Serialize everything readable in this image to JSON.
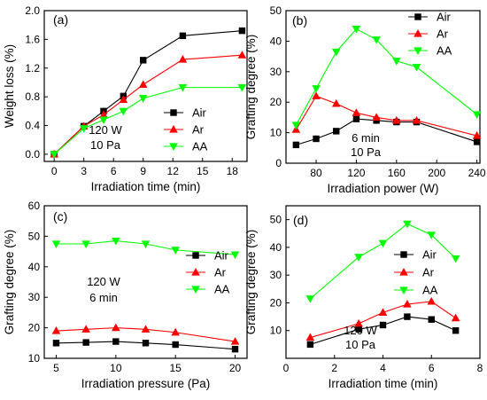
{
  "chart_data": [
    {
      "type": "line",
      "panel_label": "(a)",
      "xlabel": "Irradiation time (min)",
      "ylabel": "Weight loss (%)",
      "xlim": [
        -1,
        19.5
      ],
      "ylim": [
        -0.1,
        2.0
      ],
      "xticks": [
        0,
        3,
        6,
        9,
        12,
        15,
        18
      ],
      "yticks": [
        0.0,
        0.4,
        0.8,
        1.2,
        1.6,
        2.0
      ],
      "ytick_labels": [
        "0.0",
        "0.4",
        "0.8",
        "1.2",
        "1.6",
        "2.0"
      ],
      "legend_position": "bottom-right",
      "annotations": [
        "120 W",
        "10 Pa"
      ],
      "series": [
        {
          "name": "Air",
          "marker": "square",
          "color": "#000000",
          "x": [
            0,
            3,
            5,
            7,
            9,
            13,
            19
          ],
          "y": [
            0.0,
            0.39,
            0.6,
            0.81,
            1.31,
            1.65,
            1.72
          ]
        },
        {
          "name": "Ar",
          "marker": "triangle-up",
          "color": "#ff0000",
          "x": [
            0,
            3,
            5,
            7,
            9,
            13,
            19
          ],
          "y": [
            0.0,
            0.39,
            0.55,
            0.76,
            0.97,
            1.32,
            1.38
          ]
        },
        {
          "name": "AA",
          "marker": "triangle-down",
          "color": "#00ff00",
          "x": [
            0,
            3,
            5,
            7,
            9,
            13,
            19
          ],
          "y": [
            0.0,
            0.36,
            0.48,
            0.6,
            0.78,
            0.93,
            0.93
          ]
        }
      ]
    },
    {
      "type": "line",
      "panel_label": "(b)",
      "xlabel": "Irradiation power (W)",
      "ylabel": "Grafting degree (%)",
      "xlim": [
        50,
        243
      ],
      "ylim": [
        0,
        50
      ],
      "xticks": [
        80,
        120,
        160,
        200,
        240
      ],
      "yticks": [
        0,
        10,
        20,
        30,
        40,
        50
      ],
      "legend_position": "top-right",
      "annotations": [
        "6 min",
        "10 Pa"
      ],
      "series": [
        {
          "name": "Air",
          "marker": "square",
          "color": "#000000",
          "x": [
            60,
            80,
            100,
            120,
            140,
            160,
            180,
            240
          ],
          "y": [
            6,
            8,
            10.5,
            14.5,
            14,
            13.5,
            13.5,
            7
          ]
        },
        {
          "name": "Ar",
          "marker": "triangle-up",
          "color": "#ff0000",
          "x": [
            60,
            80,
            100,
            120,
            140,
            160,
            180,
            240
          ],
          "y": [
            11,
            22,
            19.5,
            16.5,
            15,
            14,
            14,
            9
          ]
        },
        {
          "name": "AA",
          "marker": "triangle-down",
          "color": "#00ff00",
          "x": [
            60,
            80,
            100,
            120,
            140,
            160,
            180,
            240
          ],
          "y": [
            12.5,
            24.5,
            36.5,
            44,
            40.5,
            33.5,
            31.5,
            16
          ]
        }
      ]
    },
    {
      "type": "line",
      "panel_label": "(c)",
      "xlabel": "Irradiation pressure (Pa)",
      "ylabel": "Grafting degree (%)",
      "xlim": [
        4,
        21
      ],
      "ylim": [
        10,
        60
      ],
      "xticks": [
        5,
        10,
        15,
        20
      ],
      "yticks": [
        10,
        20,
        30,
        40,
        50,
        60
      ],
      "legend_position": "right",
      "annotations": [
        "120 W",
        "6 min"
      ],
      "series": [
        {
          "name": "Air",
          "marker": "square",
          "color": "#000000",
          "x": [
            5,
            7.5,
            10,
            12.5,
            15,
            20
          ],
          "y": [
            15,
            15.2,
            15.5,
            15,
            14.5,
            13
          ]
        },
        {
          "name": "Ar",
          "marker": "triangle-up",
          "color": "#ff0000",
          "x": [
            5,
            7.5,
            10,
            12.5,
            15,
            20
          ],
          "y": [
            19,
            19.5,
            20,
            19.5,
            18.5,
            15.5
          ]
        },
        {
          "name": "AA",
          "marker": "triangle-down",
          "color": "#00ff00",
          "x": [
            5,
            7.5,
            10,
            12.5,
            15,
            20
          ],
          "y": [
            47.5,
            47.5,
            48.5,
            47.5,
            45.5,
            44
          ]
        }
      ]
    },
    {
      "type": "line",
      "panel_label": "(d)",
      "xlabel": "Irradiation time (min)",
      "ylabel": "Grafting degree (%)",
      "xlim": [
        0,
        8
      ],
      "ylim": [
        0,
        55
      ],
      "xticks": [
        0,
        2,
        4,
        6,
        8
      ],
      "yticks": [
        10,
        20,
        30,
        40,
        50
      ],
      "legend_position": "bottom-right",
      "annotations": [
        "120 W",
        "10 Pa"
      ],
      "series": [
        {
          "name": "Air",
          "marker": "square",
          "color": "#000000",
          "x": [
            1,
            3,
            4,
            5,
            6,
            7
          ],
          "y": [
            5,
            10.5,
            12,
            15,
            14,
            10
          ]
        },
        {
          "name": "Ar",
          "marker": "triangle-up",
          "color": "#ff0000",
          "x": [
            1,
            3,
            4,
            5,
            6,
            7
          ],
          "y": [
            7.5,
            12.5,
            16.5,
            19.5,
            20.5,
            14.5
          ]
        },
        {
          "name": "AA",
          "marker": "triangle-down",
          "color": "#00ff00",
          "x": [
            1,
            3,
            4,
            5,
            6,
            7
          ],
          "y": [
            21.5,
            36.5,
            41.5,
            48.5,
            44.5,
            36
          ]
        }
      ]
    }
  ]
}
